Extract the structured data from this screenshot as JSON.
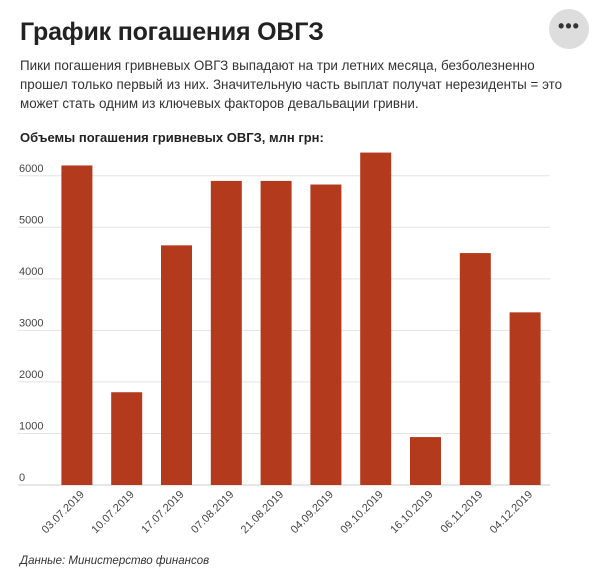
{
  "header": {
    "title": "График погашения ОВГЗ",
    "subtitle": "Пики погашения гривневых ОВГЗ выпадают на три летних месяца, безболезненно прошел только первый из них. Значительную часть выплат получат нерезиденты = это может стать одним из ключевых факторов девальвации гривни.",
    "menu_icon": "more-dots-icon"
  },
  "chart_data": {
    "type": "bar",
    "title": "Объемы погашения гривневых ОВГЗ, млн грн:",
    "categories": [
      "03.07.2019",
      "10.07.2019",
      "17.07.2019",
      "07.08.2019",
      "21.08.2019",
      "04.09.2019",
      "09.10.2019",
      "16.10.2019",
      "06.11.2019",
      "04.12.2019"
    ],
    "values": [
      6200,
      1800,
      4650,
      5900,
      5900,
      5830,
      6450,
      930,
      4500,
      3350
    ],
    "ylim": [
      0,
      6500
    ],
    "yticks": [
      0,
      1000,
      2000,
      3000,
      4000,
      5000,
      6000
    ],
    "grid": true,
    "bar_color": "#b33a1c",
    "grid_color": "#e3e3e3"
  },
  "footer": {
    "source": "Данные: Министерство финансов"
  }
}
